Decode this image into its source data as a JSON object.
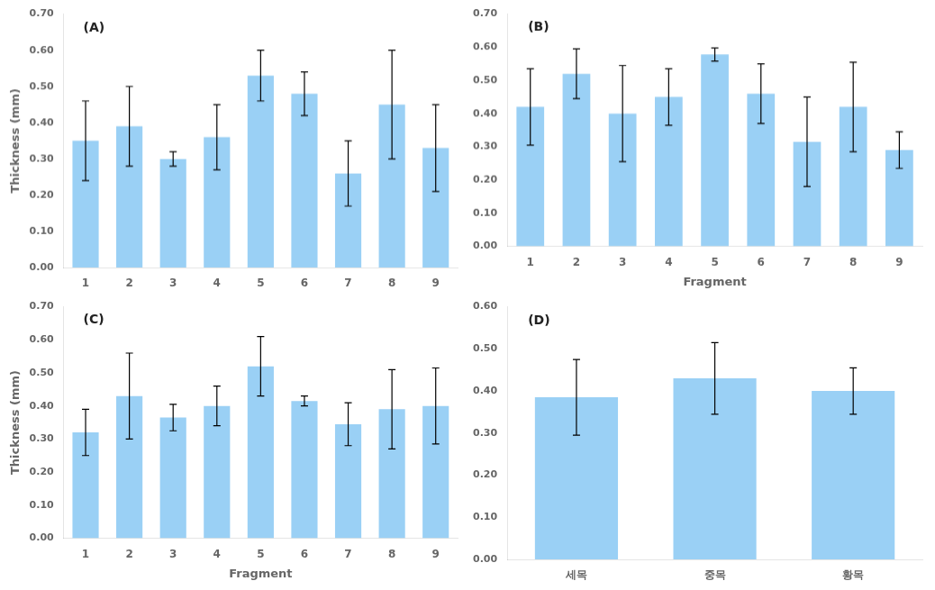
{
  "chart_data": [
    {
      "type": "bar",
      "categories": [
        "1",
        "2",
        "3",
        "4",
        "5",
        "6",
        "7",
        "8",
        "9"
      ],
      "values": [
        0.35,
        0.39,
        0.3,
        0.36,
        0.53,
        0.48,
        0.26,
        0.45,
        0.33
      ],
      "errors": [
        0.11,
        0.11,
        0.02,
        0.09,
        0.07,
        0.06,
        0.09,
        0.15,
        0.12
      ],
      "annotations": [
        "(A)"
      ],
      "ylabel": "Thickness (mm)",
      "ylim": [
        0,
        0.7
      ],
      "yticks": [
        {
          "value": 0,
          "label": "0.00"
        },
        {
          "value": 0.1,
          "label": "0.10"
        },
        {
          "value": 0.2,
          "label": "0.20"
        },
        {
          "value": 0.3,
          "label": "0.30"
        },
        {
          "value": 0.4,
          "label": "0.40"
        },
        {
          "value": 0.5,
          "label": "0.50"
        },
        {
          "value": 0.6,
          "label": "0.60"
        },
        {
          "value": 0.7,
          "label": "0.70"
        }
      ],
      "grid": false
    },
    {
      "type": "bar",
      "categories": [
        "1",
        "2",
        "3",
        "4",
        "5",
        "6",
        "7",
        "8",
        "9"
      ],
      "values": [
        0.42,
        0.52,
        0.4,
        0.45,
        0.578,
        0.46,
        0.315,
        0.42,
        0.29
      ],
      "errors": [
        0.115,
        0.075,
        0.145,
        0.085,
        0.02,
        0.09,
        0.135,
        0.135,
        0.055
      ],
      "annotations": [
        "(B)"
      ],
      "xlabel": "Fragment",
      "ylim": [
        0,
        0.7
      ],
      "yticks": [
        {
          "value": 0,
          "label": "0.00"
        },
        {
          "value": 0.1,
          "label": "0.10"
        },
        {
          "value": 0.2,
          "label": "0.20"
        },
        {
          "value": 0.3,
          "label": "0.30"
        },
        {
          "value": 0.4,
          "label": "0.40"
        },
        {
          "value": 0.5,
          "label": "0.50"
        },
        {
          "value": 0.6,
          "label": "0.60"
        },
        {
          "value": 0.7,
          "label": "0.70"
        }
      ],
      "grid": false
    },
    {
      "type": "bar",
      "categories": [
        "1",
        "2",
        "3",
        "4",
        "5",
        "6",
        "7",
        "8",
        "9"
      ],
      "values": [
        0.32,
        0.43,
        0.365,
        0.4,
        0.52,
        0.415,
        0.345,
        0.39,
        0.4
      ],
      "errors": [
        0.07,
        0.13,
        0.04,
        0.06,
        0.09,
        0.015,
        0.065,
        0.12,
        0.115
      ],
      "annotations": [
        "(C)"
      ],
      "ylabel": "Thickness (mm)",
      "xlabel": "Fragment",
      "ylim": [
        0,
        0.7
      ],
      "yticks": [
        {
          "value": 0,
          "label": "0.00"
        },
        {
          "value": 0.1,
          "label": "0.10"
        },
        {
          "value": 0.2,
          "label": "0.20"
        },
        {
          "value": 0.3,
          "label": "0.30"
        },
        {
          "value": 0.4,
          "label": "0.40"
        },
        {
          "value": 0.5,
          "label": "0.50"
        },
        {
          "value": 0.6,
          "label": "0.60"
        },
        {
          "value": 0.7,
          "label": "0.70"
        }
      ],
      "grid": false
    },
    {
      "type": "bar",
      "categories": [
        "세목",
        "중목",
        "황목"
      ],
      "values": [
        0.385,
        0.43,
        0.4
      ],
      "errors": [
        0.09,
        0.085,
        0.055
      ],
      "annotations": [
        "(D)"
      ],
      "ylim": [
        0,
        0.6
      ],
      "yticks": [
        {
          "value": 0,
          "label": "0.00"
        },
        {
          "value": 0.1,
          "label": "0.10"
        },
        {
          "value": 0.2,
          "label": "0.20"
        },
        {
          "value": 0.3,
          "label": "0.30"
        },
        {
          "value": 0.4,
          "label": "0.40"
        },
        {
          "value": 0.5,
          "label": "0.50"
        },
        {
          "value": 0.6,
          "label": "0.60"
        }
      ],
      "grid": false
    }
  ]
}
